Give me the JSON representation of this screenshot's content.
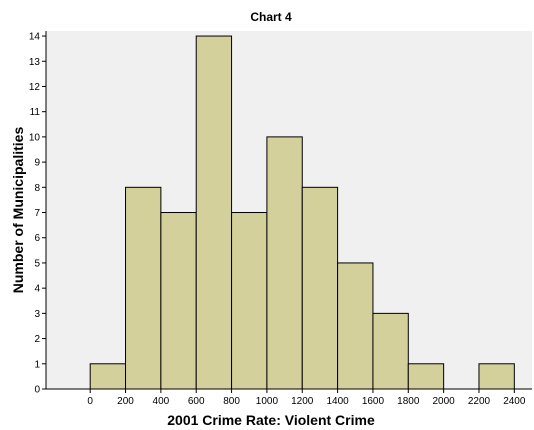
{
  "chart_data": {
    "type": "bar",
    "title": "Chart 4",
    "xlabel": "2001 Crime Rate: Violent Crime",
    "ylabel": "Number of Municipalities",
    "bin_edges": [
      0,
      200,
      400,
      600,
      800,
      1000,
      1200,
      1400,
      1600,
      1800,
      2000,
      2200,
      2400
    ],
    "values": [
      1,
      8,
      7,
      14,
      7,
      10,
      8,
      5,
      3,
      1,
      0,
      1
    ],
    "xlim": [
      -250,
      2500
    ],
    "ylim": [
      0,
      14.2
    ],
    "xticks": [
      "0",
      "200",
      "400",
      "600",
      "800",
      "1000",
      "1200",
      "1400",
      "1600",
      "1800",
      "2000",
      "2200",
      "2400"
    ],
    "yticks": [
      "0",
      "1",
      "2",
      "3",
      "4",
      "5",
      "6",
      "7",
      "8",
      "9",
      "10",
      "11",
      "12",
      "13",
      "14"
    ],
    "grid": false,
    "colors": {
      "bar_fill": "#d4d09c",
      "bar_stroke": "#000000",
      "plot_background": "#f0f0f0",
      "axis": "#000000"
    }
  }
}
